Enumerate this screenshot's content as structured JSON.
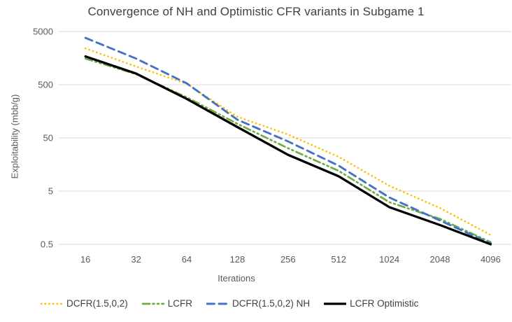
{
  "chart_data": {
    "type": "line",
    "title": "Convergence of NH and Optimistic CFR variants in Subgame 1",
    "xlabel": "Iterations",
    "ylabel": "Exploitability (mbb/g)",
    "x_scale": "log2",
    "y_scale": "log10",
    "grid": "horizontal",
    "legend_position": "bottom",
    "categories": [
      16,
      32,
      64,
      128,
      256,
      512,
      1024,
      2048,
      4096
    ],
    "y_ticks": [
      "5000",
      "500",
      "50",
      "5",
      "0.5"
    ],
    "y_tick_values": [
      5000,
      500,
      50,
      5,
      0.5
    ],
    "ylim": [
      0.5,
      5000
    ],
    "series": [
      {
        "name": "DCFR(1.5,0,2)",
        "color": "#FFC000",
        "style": "dotted",
        "values": [
          2400,
          1100,
          520,
          125,
          58,
          22,
          6.3,
          2.4,
          0.75
        ]
      },
      {
        "name": "LCFR",
        "color": "#70AD47",
        "style": "dash-dot-dot",
        "values": [
          1550,
          790,
          290,
          92,
          32,
          12,
          3.1,
          1.5,
          0.55
        ]
      },
      {
        "name": "DCFR(1.5,0,2) NH",
        "color": "#4472C4",
        "style": "dashed",
        "values": [
          3800,
          1550,
          530,
          110,
          43,
          15,
          3.8,
          1.4,
          0.52
        ]
      },
      {
        "name": "LCFR Optimistic",
        "color": "#000000",
        "style": "solid",
        "values": [
          1700,
          810,
          270,
          80,
          24,
          9.5,
          2.5,
          1.15,
          0.5
        ]
      }
    ]
  },
  "theme": {
    "grid_color": "#D9D9D9",
    "tick_text_color": "#595959",
    "title_text_color": "#404040",
    "background": "#FFFFFF"
  }
}
